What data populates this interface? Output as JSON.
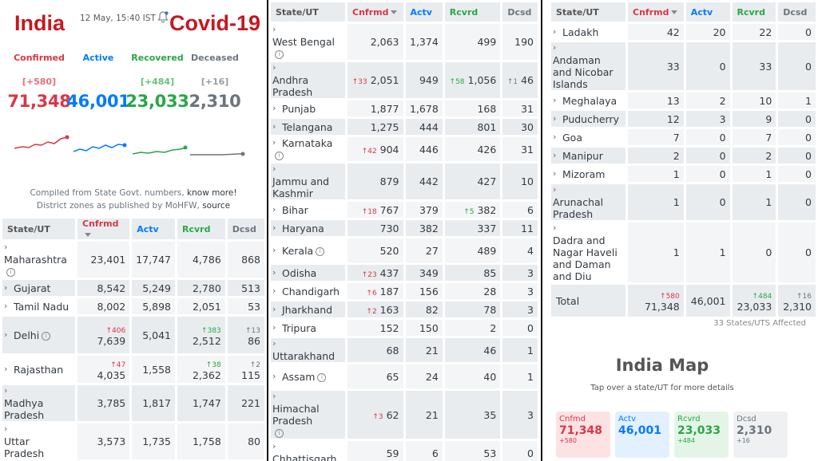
{
  "header": {
    "title_left": "India",
    "title_right": "Covid-19",
    "updated": "12 May, 15:40 IST"
  },
  "summary": [
    {
      "label": "Confirmed",
      "delta": "[+580]",
      "value": "71,348",
      "color": "#dc3545"
    },
    {
      "label": "Active",
      "delta": "",
      "value": "46,001",
      "color": "#007bff"
    },
    {
      "label": "Recovered",
      "delta": "[+484]",
      "value": "23,033",
      "color": "#28a745"
    },
    {
      "label": "Deceased",
      "delta": "[+16]",
      "value": "2,310",
      "color": "#6c757d"
    }
  ],
  "notes": {
    "line1_prefix": "Compiled from State Govt. numbers,",
    "line1_link": "know more!",
    "line2_prefix": "District zones as published by MoHFW,",
    "line2_link": "source"
  },
  "table_headers": {
    "state": "State/UT",
    "confirmed": "Cnfrmd",
    "active": "Actv",
    "recovered": "Rcvrd",
    "deceased": "Dcsd"
  },
  "panel1_rows": [
    {
      "state": "Maharashtra",
      "info": true,
      "c": "23,401",
      "cd": "",
      "a": "17,747",
      "r": "4,786",
      "rd": "",
      "d": "868",
      "dd": ""
    },
    {
      "state": "Gujarat",
      "info": false,
      "c": "8,542",
      "cd": "",
      "a": "5,249",
      "r": "2,780",
      "rd": "",
      "d": "513",
      "dd": ""
    },
    {
      "state": "Tamil Nadu",
      "info": false,
      "c": "8,002",
      "cd": "",
      "a": "5,898",
      "r": "2,051",
      "rd": "",
      "d": "53",
      "dd": ""
    },
    {
      "state": "Delhi",
      "info": true,
      "c": "7,639",
      "cd": "406",
      "a": "5,041",
      "r": "2,512",
      "rd": "383",
      "d": "86",
      "dd": "13"
    },
    {
      "state": "Rajasthan",
      "info": false,
      "c": "4,035",
      "cd": "47",
      "a": "1,558",
      "r": "2,362",
      "rd": "38",
      "d": "115",
      "dd": "2"
    },
    {
      "state": "Madhya Pradesh",
      "info": false,
      "c": "3,785",
      "cd": "",
      "a": "1,817",
      "r": "1,747",
      "rd": "",
      "d": "221",
      "dd": ""
    },
    {
      "state": "Uttar Pradesh",
      "info": false,
      "c": "3,573",
      "cd": "",
      "a": "1,735",
      "r": "1,758",
      "rd": "",
      "d": "80",
      "dd": ""
    }
  ],
  "panel2_rows": [
    {
      "state": "West Bengal",
      "info": true,
      "c": "2,063",
      "cd": "",
      "a": "1,374",
      "r": "499",
      "rd": "",
      "d": "190",
      "dd": ""
    },
    {
      "state": "Andhra Pradesh",
      "info": false,
      "c": "2,051",
      "cd": "33",
      "a": "949",
      "r": "1,056",
      "rd": "58",
      "d": "46",
      "dd": "1"
    },
    {
      "state": "Punjab",
      "info": false,
      "c": "1,877",
      "cd": "",
      "a": "1,678",
      "r": "168",
      "rd": "",
      "d": "31",
      "dd": ""
    },
    {
      "state": "Telangana",
      "info": false,
      "c": "1,275",
      "cd": "",
      "a": "444",
      "r": "801",
      "rd": "",
      "d": "30",
      "dd": ""
    },
    {
      "state": "Karnataka",
      "info": true,
      "c": "904",
      "cd": "42",
      "a": "446",
      "r": "426",
      "rd": "",
      "d": "31",
      "dd": ""
    },
    {
      "state": "Jammu and Kashmir",
      "info": false,
      "c": "879",
      "cd": "",
      "a": "442",
      "r": "427",
      "rd": "",
      "d": "10",
      "dd": ""
    },
    {
      "state": "Bihar",
      "info": false,
      "c": "767",
      "cd": "18",
      "a": "379",
      "r": "382",
      "rd": "5",
      "d": "6",
      "dd": ""
    },
    {
      "state": "Haryana",
      "info": false,
      "c": "730",
      "cd": "",
      "a": "382",
      "r": "337",
      "rd": "",
      "d": "11",
      "dd": ""
    },
    {
      "state": "Kerala",
      "info": true,
      "c": "520",
      "cd": "",
      "a": "27",
      "r": "489",
      "rd": "",
      "d": "4",
      "dd": ""
    },
    {
      "state": "Odisha",
      "info": false,
      "c": "437",
      "cd": "23",
      "a": "349",
      "r": "85",
      "rd": "",
      "d": "3",
      "dd": ""
    },
    {
      "state": "Chandigarh",
      "info": false,
      "c": "187",
      "cd": "6",
      "a": "156",
      "r": "28",
      "rd": "",
      "d": "3",
      "dd": ""
    },
    {
      "state": "Jharkhand",
      "info": false,
      "c": "163",
      "cd": "2",
      "a": "82",
      "r": "78",
      "rd": "",
      "d": "3",
      "dd": ""
    },
    {
      "state": "Tripura",
      "info": false,
      "c": "152",
      "cd": "",
      "a": "150",
      "r": "2",
      "rd": "",
      "d": "0",
      "dd": ""
    },
    {
      "state": "Uttarakhand",
      "info": false,
      "c": "68",
      "cd": "",
      "a": "21",
      "r": "46",
      "rd": "",
      "d": "1",
      "dd": ""
    },
    {
      "state": "Assam",
      "info": true,
      "c": "65",
      "cd": "",
      "a": "24",
      "r": "40",
      "rd": "",
      "d": "1",
      "dd": ""
    },
    {
      "state": "Himachal Pradesh",
      "info": true,
      "c": "62",
      "cd": "3",
      "a": "21",
      "r": "35",
      "rd": "",
      "d": "3",
      "dd": ""
    },
    {
      "state": "Chhattisgarh",
      "info": false,
      "c": "59",
      "cd": "",
      "a": "6",
      "r": "53",
      "rd": "",
      "d": "0",
      "dd": ""
    }
  ],
  "panel3_rows": [
    {
      "state": "Ladakh",
      "info": false,
      "c": "42",
      "cd": "",
      "a": "20",
      "r": "22",
      "rd": "",
      "d": "0",
      "dd": ""
    },
    {
      "state": "Andaman and Nicobar Islands",
      "info": false,
      "c": "33",
      "cd": "",
      "a": "0",
      "r": "33",
      "rd": "",
      "d": "0",
      "dd": ""
    },
    {
      "state": "Meghalaya",
      "info": false,
      "c": "13",
      "cd": "",
      "a": "2",
      "r": "10",
      "rd": "",
      "d": "1",
      "dd": ""
    },
    {
      "state": "Puducherry",
      "info": false,
      "c": "12",
      "cd": "",
      "a": "3",
      "r": "9",
      "rd": "",
      "d": "0",
      "dd": ""
    },
    {
      "state": "Goa",
      "info": false,
      "c": "7",
      "cd": "",
      "a": "0",
      "r": "7",
      "rd": "",
      "d": "0",
      "dd": ""
    },
    {
      "state": "Manipur",
      "info": false,
      "c": "2",
      "cd": "",
      "a": "0",
      "r": "2",
      "rd": "",
      "d": "0",
      "dd": ""
    },
    {
      "state": "Mizoram",
      "info": false,
      "c": "1",
      "cd": "",
      "a": "0",
      "r": "1",
      "rd": "",
      "d": "0",
      "dd": ""
    },
    {
      "state": "Arunachal Pradesh",
      "info": false,
      "c": "1",
      "cd": "",
      "a": "0",
      "r": "1",
      "rd": "",
      "d": "0",
      "dd": ""
    },
    {
      "state": "Dadra and Nagar Haveli and Daman and Diu",
      "info": false,
      "c": "1",
      "cd": "",
      "a": "1",
      "r": "0",
      "rd": "",
      "d": "0",
      "dd": ""
    }
  ],
  "total_row": {
    "state": "Total",
    "c": "71,348",
    "cd": "580",
    "a": "46,001",
    "r": "23,033",
    "rd": "484",
    "d": "2,310",
    "dd": "16"
  },
  "affected": "33 States/UTS Affected",
  "map": {
    "title": "India Map",
    "subtitle": "Tap over a state/UT for more details",
    "cards": [
      {
        "label": "Cnfmd",
        "value": "71,348",
        "delta": "+580",
        "color": "#dc3545",
        "bg": "#fde2e4"
      },
      {
        "label": "Actv",
        "value": "46,001",
        "delta": "",
        "color": "#007bff",
        "bg": "#e3f0ff"
      },
      {
        "label": "Rcvrd",
        "value": "23,033",
        "delta": "+484",
        "color": "#28a745",
        "bg": "#e4f5e8"
      },
      {
        "label": "Dcsd",
        "value": "2,310",
        "delta": "+16",
        "color": "#6c757d",
        "bg": "#eef0f2"
      }
    ]
  }
}
